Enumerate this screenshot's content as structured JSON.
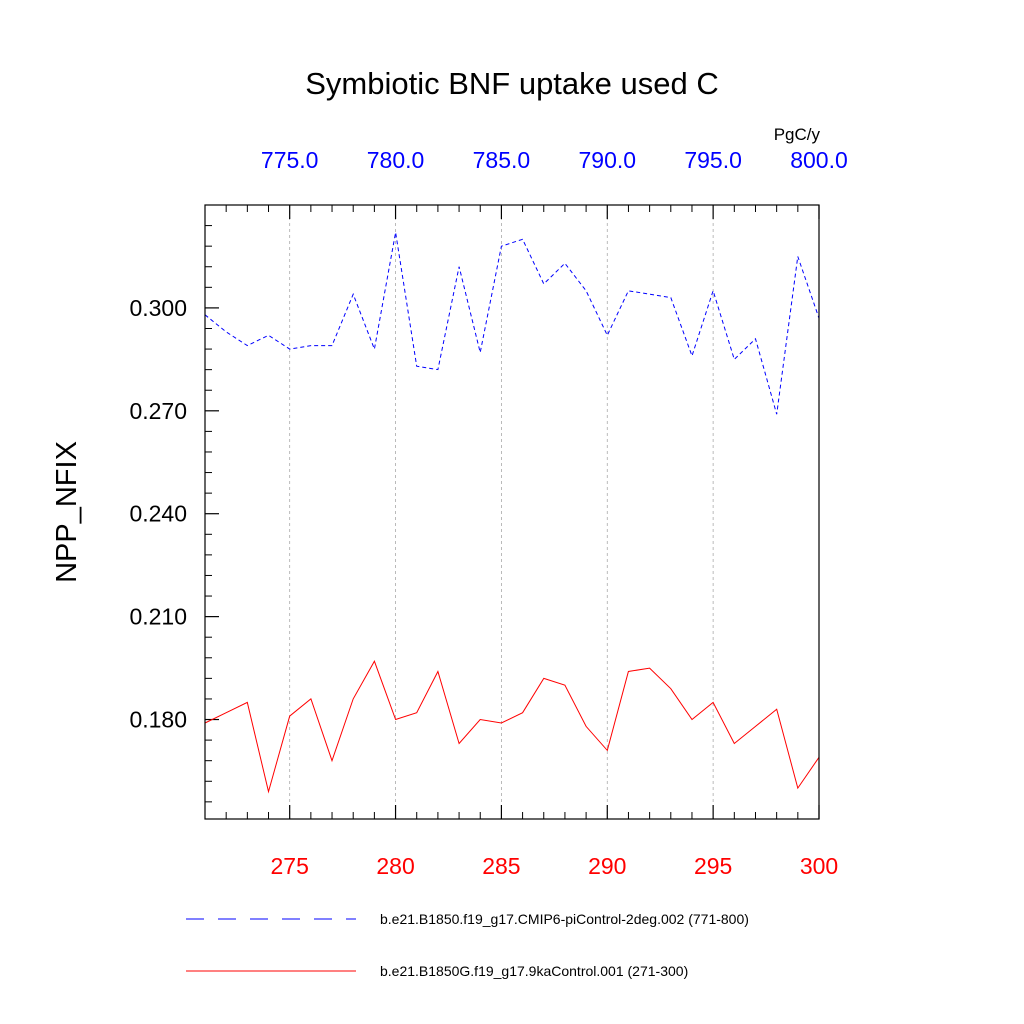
{
  "chart_data": {
    "type": "line",
    "title": "Symbiotic BNF uptake used C",
    "ylabel": "NPP_NFIX",
    "units": "PgC/y",
    "xlim_bottom": [
      271,
      300
    ],
    "xlim_top": [
      771,
      800
    ],
    "ylim": [
      0.151,
      0.33
    ],
    "y_ticks": [
      0.18,
      0.21,
      0.24,
      0.27,
      0.3
    ],
    "y_tick_labels": [
      "0.180",
      "0.210",
      "0.240",
      "0.270",
      "0.300"
    ],
    "x_bottom_ticks": [
      275,
      280,
      285,
      290,
      295,
      300
    ],
    "x_bottom_tick_labels": [
      "275",
      "280",
      "285",
      "290",
      "295",
      "300"
    ],
    "x_top_ticks": [
      775,
      780,
      785,
      790,
      795,
      800
    ],
    "x_top_tick_labels": [
      "775.0",
      "780.0",
      "785.0",
      "790.0",
      "795.0",
      "800.0"
    ],
    "grid": "vertical dotted at major bottom ticks",
    "legend_placement": "below plot",
    "series": [
      {
        "name": "b.e21.B1850.f19_g17.CMIP6-piControl-2deg.002 (771-800)",
        "axis": "top",
        "color": "#0000ff",
        "style": "dashed",
        "x": [
          771,
          772,
          773,
          774,
          775,
          776,
          777,
          778,
          779,
          780,
          781,
          782,
          783,
          784,
          785,
          786,
          787,
          788,
          789,
          790,
          791,
          792,
          793,
          794,
          795,
          796,
          797,
          798,
          799,
          800
        ],
        "values": [
          0.298,
          0.293,
          0.289,
          0.292,
          0.288,
          0.289,
          0.289,
          0.304,
          0.288,
          0.322,
          0.283,
          0.282,
          0.312,
          0.287,
          0.318,
          0.32,
          0.307,
          0.313,
          0.305,
          0.292,
          0.305,
          0.304,
          0.303,
          0.286,
          0.305,
          0.285,
          0.291,
          0.269,
          0.315,
          0.297
        ]
      },
      {
        "name": "b.e21.B1850G.f19_g17.9kaControl.001 (271-300)",
        "axis": "bottom",
        "color": "#ff0000",
        "style": "solid",
        "x": [
          271,
          272,
          273,
          274,
          275,
          276,
          277,
          278,
          279,
          280,
          281,
          282,
          283,
          284,
          285,
          286,
          287,
          288,
          289,
          290,
          291,
          292,
          293,
          294,
          295,
          296,
          297,
          298,
          299,
          300
        ],
        "values": [
          0.179,
          0.182,
          0.185,
          0.159,
          0.181,
          0.186,
          0.168,
          0.186,
          0.197,
          0.18,
          0.182,
          0.194,
          0.173,
          0.18,
          0.179,
          0.182,
          0.192,
          0.19,
          0.178,
          0.171,
          0.194,
          0.195,
          0.189,
          0.18,
          0.185,
          0.173,
          0.178,
          0.183,
          0.16,
          0.169
        ]
      }
    ]
  }
}
